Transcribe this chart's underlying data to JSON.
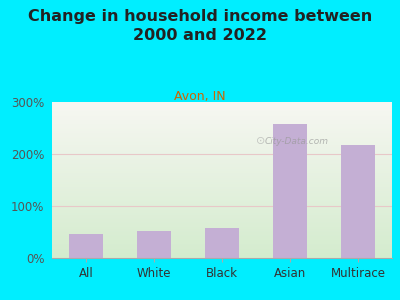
{
  "title": "Change in household income between\n2000 and 2022",
  "subtitle": "Avon, IN",
  "categories": [
    "All",
    "White",
    "Black",
    "Asian",
    "Multirace"
  ],
  "values": [
    47,
    52,
    57,
    258,
    218
  ],
  "bar_color": "#c4afd4",
  "title_fontsize": 11.5,
  "subtitle_fontsize": 9,
  "subtitle_color": "#cc6600",
  "title_color": "#222222",
  "background_outer": "#00eeff",
  "background_inner_top": "#f7f7f2",
  "background_inner_bottom": "#d4ecce",
  "ylim": [
    0,
    300
  ],
  "yticks": [
    0,
    100,
    200,
    300
  ],
  "ytick_labels": [
    "0%",
    "100%",
    "200%",
    "300%"
  ],
  "watermark": "City-Data.com",
  "axis_line_color": "#aaaaaa",
  "grid_color": "#e8c8c8",
  "tick_label_fontsize": 8.5
}
